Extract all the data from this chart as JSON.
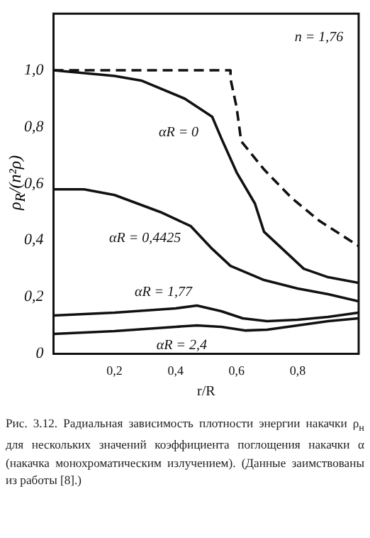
{
  "chart_data": {
    "type": "line",
    "xlabel": "r/R",
    "ylabel": "ρ$_{R}$/(n²ρ)",
    "x": [
      0,
      0.1,
      0.2,
      0.29,
      0.43,
      0.52,
      0.55,
      0.6,
      0.66,
      0.69,
      0.75,
      0.82,
      0.9,
      1.0
    ],
    "series": [
      {
        "color": "#111111",
        "line_style": "dashed",
        "x": [
          0,
          0.2,
          0.4,
          0.58,
          0.58,
          0.6,
          0.615,
          0.69,
          0.78,
          0.87,
          1.0
        ],
        "values": [
          1.0,
          1.0,
          1.0,
          1.0,
          0.97,
          0.87,
          0.75,
          0.65,
          0.55,
          0.47,
          0.38
        ]
      },
      {
        "color": "#111111",
        "values": [
          1.0,
          0.99,
          0.98,
          0.963,
          0.9,
          0.836,
          0.76,
          0.64,
          0.53,
          0.43,
          0.37,
          0.3,
          0.27,
          0.25
        ]
      },
      {
        "color": "#111111",
        "x": [
          0,
          0.1,
          0.2,
          0.35,
          0.45,
          0.52,
          0.58,
          0.69,
          0.8,
          0.9,
          1.0
        ],
        "values": [
          0.58,
          0.58,
          0.56,
          0.5,
          0.45,
          0.37,
          0.31,
          0.26,
          0.23,
          0.21,
          0.185
        ]
      },
      {
        "color": "#111111",
        "x": [
          0,
          0.2,
          0.4,
          0.47,
          0.55,
          0.62,
          0.7,
          0.8,
          0.9,
          1.0
        ],
        "values": [
          0.135,
          0.145,
          0.16,
          0.17,
          0.15,
          0.125,
          0.115,
          0.12,
          0.13,
          0.145
        ]
      },
      {
        "color": "#111111",
        "x": [
          0,
          0.2,
          0.4,
          0.47,
          0.55,
          0.63,
          0.7,
          0.8,
          0.9,
          1.0
        ],
        "values": [
          0.07,
          0.08,
          0.095,
          0.1,
          0.095,
          0.082,
          0.085,
          0.1,
          0.115,
          0.125
        ]
      }
    ],
    "xlim": [
      0,
      1
    ],
    "ylim": [
      0,
      1.2
    ],
    "xticks": [
      {
        "value": 0.2,
        "label": "0,2"
      },
      {
        "value": 0.4,
        "label": "0,4"
      },
      {
        "value": 0.6,
        "label": "0,6"
      },
      {
        "value": 0.8,
        "label": "0,8"
      }
    ],
    "yticks": [
      0,
      {
        "value": 0.2,
        "label": "0,2"
      },
      {
        "value": 0.4,
        "label": "0,4"
      },
      {
        "value": 0.6,
        "label": "0,6"
      },
      {
        "value": 0.8,
        "label": "0,8"
      },
      {
        "value": 1.0,
        "label": "1,0"
      }
    ],
    "marker": "none",
    "grid": false,
    "legend": false,
    "annotations": [
      "n = 1,76",
      "αR = 0",
      "αR = 0,4425",
      "αR = 1,77",
      "αR = 2,4",
      "Рис. 3.12. Радиальная зависимость плотности энергии накачки ρ$_{н}$ для нескольких значений коэффициента поглощения накачки α (накачка монохроматическим излучением). (Данные заимствованы из работы [8].)"
    ]
  }
}
